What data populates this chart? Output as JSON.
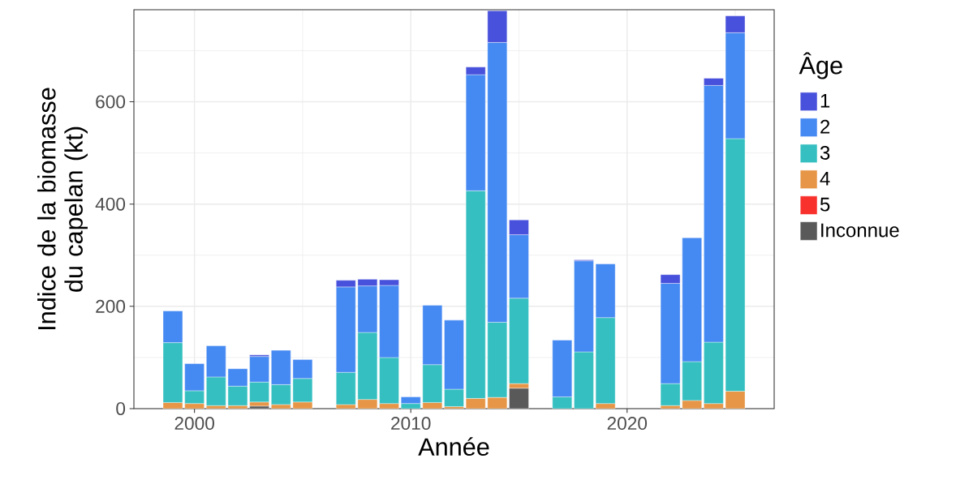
{
  "chart_data": {
    "type": "bar",
    "stacked": true,
    "xlabel": "Année",
    "ylabel": "Indice de la biomasse du capelan (kt)",
    "legend_title": "Âge",
    "legend": "right",
    "grid": true,
    "x": [
      1999,
      2000,
      2001,
      2002,
      2003,
      2004,
      2005,
      2007,
      2008,
      2009,
      2010,
      2011,
      2012,
      2013,
      2014,
      2015,
      2017,
      2018,
      2019,
      2022,
      2023,
      2024,
      2025
    ],
    "xlim": [
      1997.2,
      2026.8
    ],
    "xticks": [
      2000,
      2010,
      2020
    ],
    "ylim": [
      0,
      780
    ],
    "yticks": [
      0,
      200,
      400,
      600
    ],
    "series": [
      {
        "name": "Inconnue",
        "color": "#595959",
        "values": [
          null,
          null,
          null,
          null,
          5,
          null,
          null,
          null,
          null,
          null,
          null,
          null,
          null,
          null,
          null,
          40,
          null,
          null,
          null,
          null,
          null,
          null,
          null
        ]
      },
      {
        "name": "5",
        "color": "#f8312d",
        "values": [
          null,
          null,
          null,
          null,
          null,
          null,
          null,
          null,
          null,
          null,
          null,
          null,
          null,
          null,
          null,
          null,
          null,
          null,
          null,
          null,
          null,
          null,
          null
        ]
      },
      {
        "name": "4",
        "color": "#e69646",
        "values": [
          12,
          10,
          6,
          6,
          8,
          8,
          13,
          8,
          18,
          10,
          null,
          12,
          4,
          20,
          22,
          9,
          null,
          null,
          10,
          6,
          16,
          10,
          34
        ]
      },
      {
        "name": "3",
        "color": "#35bfc0",
        "values": [
          117,
          25,
          56,
          38,
          39,
          39,
          46,
          63,
          131,
          90,
          10,
          74,
          34,
          406,
          147,
          167,
          23,
          111,
          168,
          43,
          76,
          120,
          494
        ]
      },
      {
        "name": "2",
        "color": "#4589f2",
        "values": [
          62,
          53,
          61,
          34,
          50,
          67,
          37,
          167,
          91,
          141,
          13,
          116,
          135,
          227,
          547,
          124,
          111,
          178,
          105,
          196,
          242,
          502,
          207
        ]
      },
      {
        "name": "1",
        "color": "#4851db",
        "values": [
          null,
          null,
          null,
          null,
          3,
          null,
          null,
          13,
          13,
          11,
          null,
          null,
          null,
          15,
          62,
          29,
          null,
          2,
          null,
          17,
          null,
          14,
          33
        ]
      }
    ]
  }
}
